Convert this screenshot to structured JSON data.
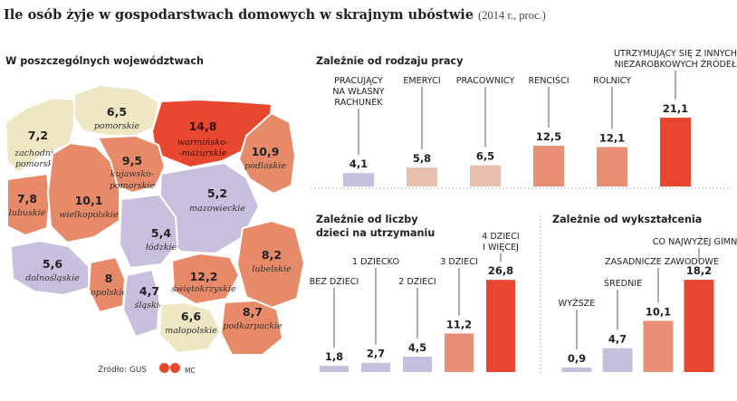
{
  "title": {
    "main": "Ile osób żyje w gospodarstwach domowych w skrajnym ubóstwie",
    "sub": "(2014 r., proc.)"
  },
  "sections": {
    "map": "W poszczególnych województwach",
    "work": "Zależnie od rodzaju pracy",
    "kids": "Zależnie od liczby dzieci na utrzymaniu",
    "edu": "Zależnie od wykształcenia"
  },
  "footer": {
    "source": "Źródło: GUS",
    "logo": "GP",
    "author": "MC"
  },
  "colors": {
    "low": "#c7bfdd",
    "mid": "#efe6c4",
    "high": "#e78a6a",
    "max": "#e8472f"
  },
  "chart_data": [
    {
      "type": "choropleth",
      "title": "W poszczególnych województwach",
      "regions": [
        {
          "name": "zachodnio-pomorskie",
          "value": "7,2"
        },
        {
          "name": "pomorskie",
          "value": "6,5"
        },
        {
          "name": "warmińsko-mazurskie",
          "value": "14,8"
        },
        {
          "name": "podlaskie",
          "value": "10,9"
        },
        {
          "name": "lubuskie",
          "value": "7,8"
        },
        {
          "name": "wielkopolskie",
          "value": "10,1"
        },
        {
          "name": "kujawsko-pomorskie",
          "value": "9,5"
        },
        {
          "name": "mazowieckie",
          "value": "5,2"
        },
        {
          "name": "łódzkie",
          "value": "5,4"
        },
        {
          "name": "dolnośląskie",
          "value": "5,6"
        },
        {
          "name": "opolskie",
          "value": "8"
        },
        {
          "name": "śląskie",
          "value": "4,7"
        },
        {
          "name": "świętokrzyskie",
          "value": "12,2"
        },
        {
          "name": "lubelskie",
          "value": "8,2"
        },
        {
          "name": "małopolskie",
          "value": "6,6"
        },
        {
          "name": "podkarpackie",
          "value": "8,7"
        }
      ]
    },
    {
      "type": "bar",
      "title": "Zależnie od rodzaju pracy",
      "categories": [
        "PRACUJĄCY NA WŁASNY RACHUNEK",
        "EMERYCI",
        "PRACOWNICY",
        "RENCIŚCI",
        "ROLNICY",
        "UTRZYMUJĄCY SIĘ Z INNYCH NIEZAROBKOWYCH ŹRÓDEŁ"
      ],
      "values": [
        4.1,
        5.8,
        6.5,
        12.5,
        12.1,
        21.1
      ],
      "labels": [
        "4,1",
        "5,8",
        "6,5",
        "12,5",
        "12,1",
        "21,1"
      ]
    },
    {
      "type": "bar",
      "title": "Zależnie od liczby dzieci na utrzymaniu",
      "categories": [
        "BEZ DZIECI",
        "1 DZIECKO",
        "2 DZIECI",
        "3 DZIECI",
        "4 DZIECI I WIĘCEJ"
      ],
      "values": [
        1.8,
        2.7,
        4.5,
        11.2,
        26.8
      ],
      "labels": [
        "1,8",
        "2,7",
        "4,5",
        "11,2",
        "26,8"
      ]
    },
    {
      "type": "bar",
      "title": "Zależnie od wykształcenia",
      "categories": [
        "WYŻSZE",
        "ŚREDNIE",
        "ZASADNICZE ZAWODOWE",
        "CO NAJWYŻEJ GIMNAZJALNE"
      ],
      "values": [
        0.9,
        4.7,
        10.1,
        18.2
      ],
      "labels": [
        "0,9",
        "4,7",
        "10,1",
        "18,2"
      ]
    }
  ]
}
